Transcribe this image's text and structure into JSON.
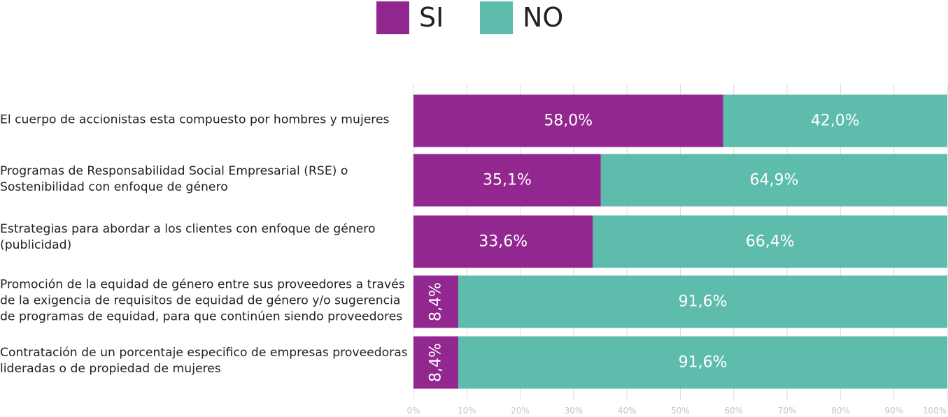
{
  "chart_data": {
    "type": "bar",
    "orientation": "horizontal",
    "stacked": true,
    "categories": [
      "El cuerpo de accionistas esta compuesto por hombres y mujeres",
      "Programas de Responsabilidad Social Empresarial (RSE) o Sostenibilidad con enfoque de género",
      "Estrategias para abordar a los clientes con enfoque de género (publicidad)",
      "Promoción de la equidad de género entre sus proveedores a través de la exigencia de requisitos de equidad de género y/o sugerencia de programas de equidad, para que continúen siendo proveedores",
      "Contratación de un porcentaje especifico de empresas proveedoras lideradas o de propiedad de mujeres"
    ],
    "series": [
      {
        "name": "SI",
        "color": "#92278f",
        "values": [
          58.0,
          35.1,
          33.6,
          8.4,
          8.4
        ],
        "labels": [
          "58,0%",
          "35,1%",
          "33,6%",
          "8,4%",
          "8,4%"
        ]
      },
      {
        "name": "NO",
        "color": "#5dbcab",
        "values": [
          42.0,
          64.9,
          66.4,
          91.6,
          91.6
        ],
        "labels": [
          "42,0%",
          "64,9%",
          "66,4%",
          "91,6%",
          "91,6%"
        ]
      }
    ],
    "xlim": [
      0,
      100
    ],
    "xticks": [
      "0%",
      "10%",
      "20%",
      "30%",
      "40%",
      "50%",
      "60%",
      "70%",
      "80%",
      "90%",
      "100%"
    ],
    "grid": true,
    "legend_position": "top-center"
  }
}
